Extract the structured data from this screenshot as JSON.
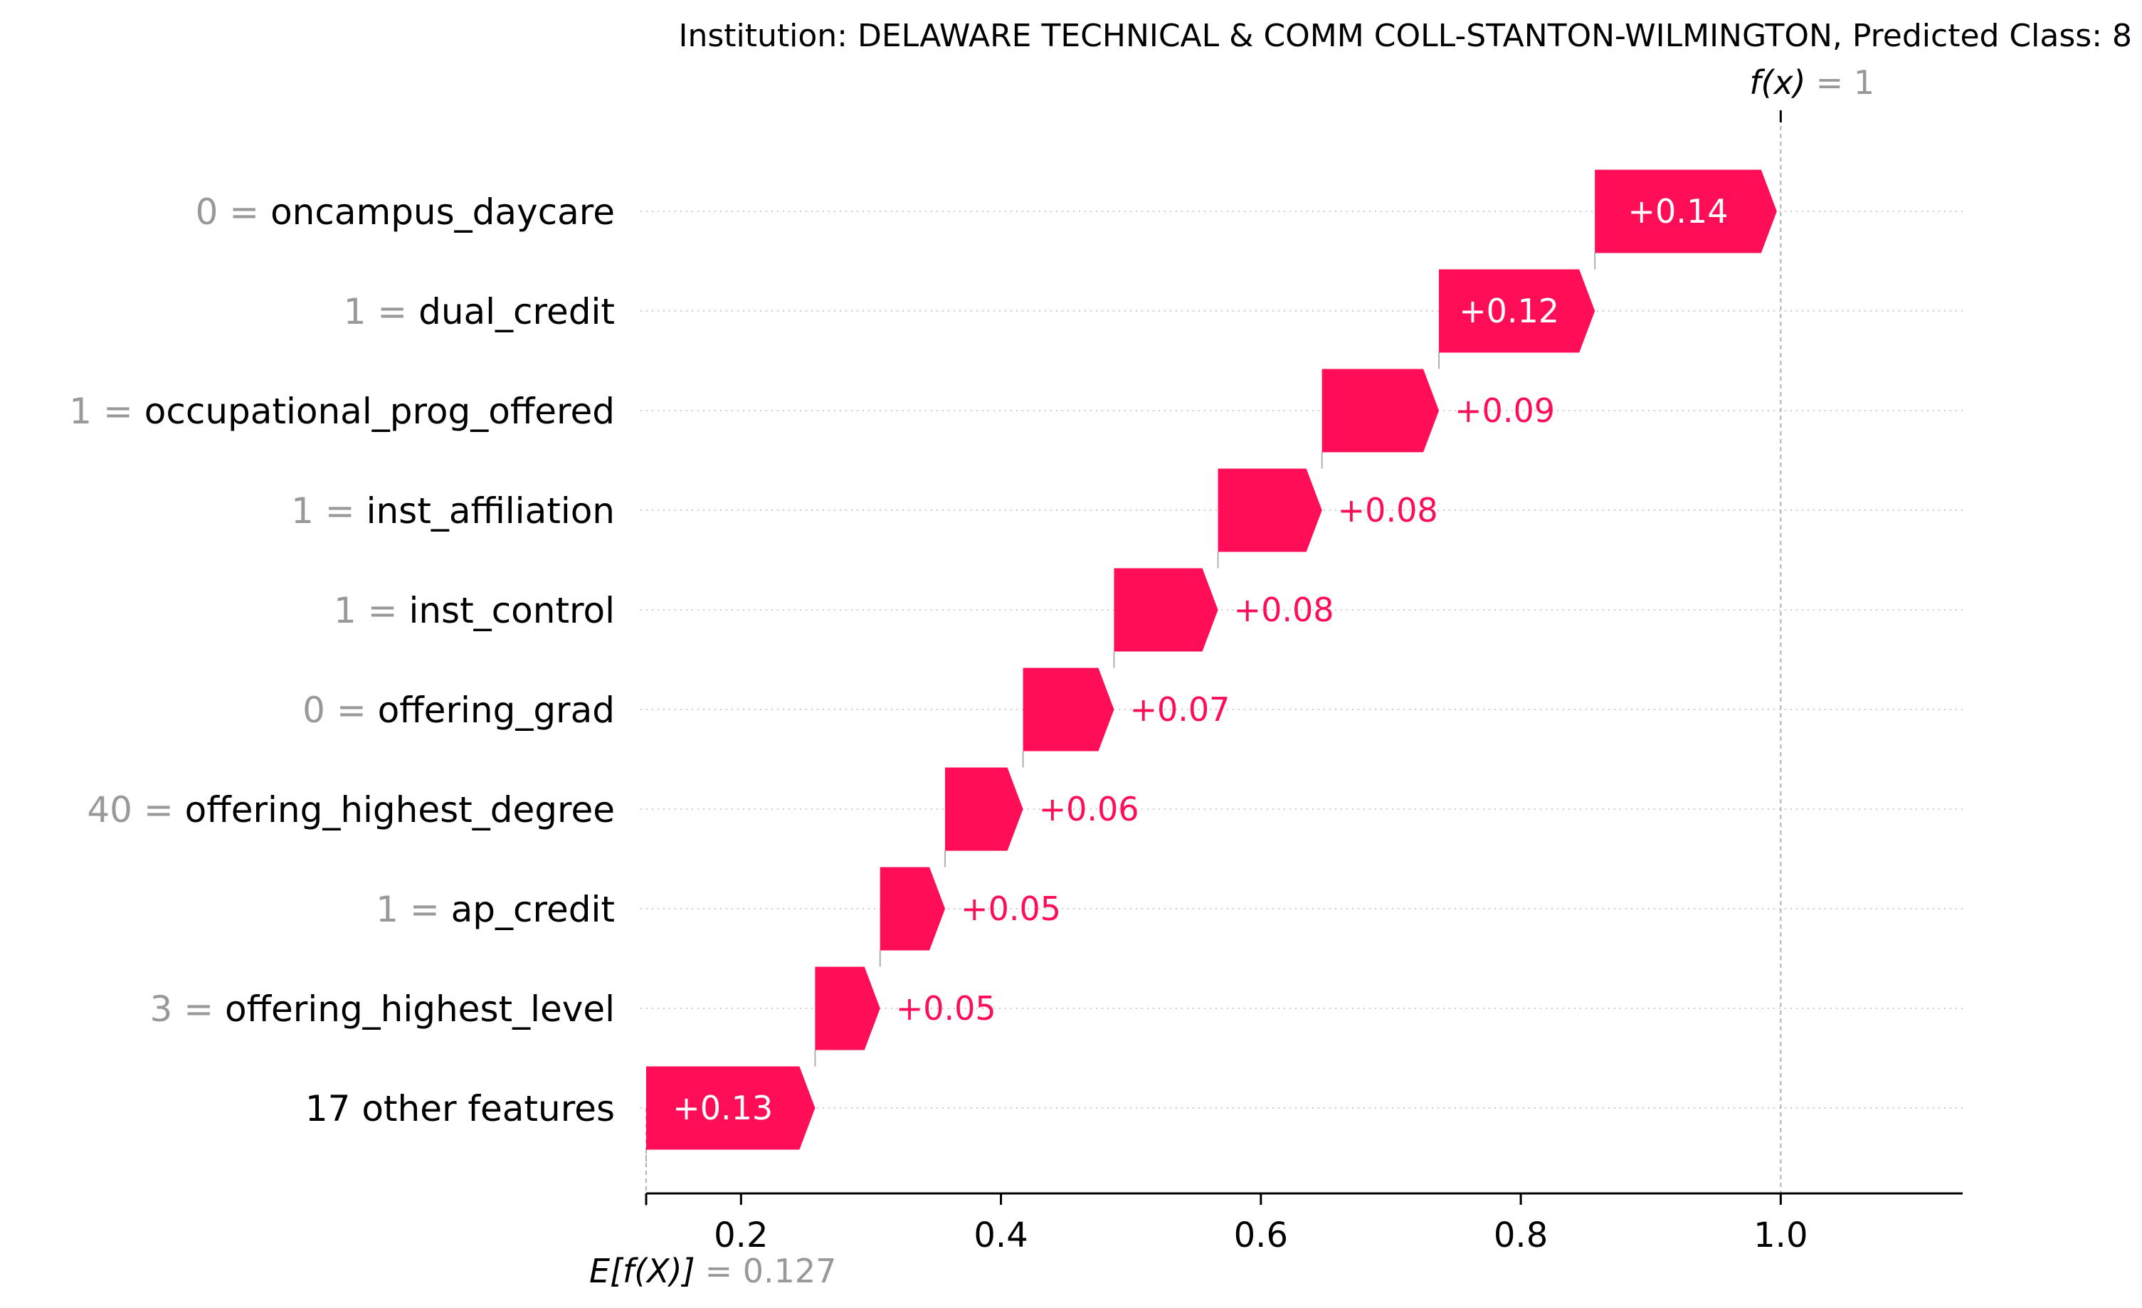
{
  "chart_data": {
    "type": "waterfall",
    "title": "Institution: DELAWARE TECHNICAL & COMM COLL-STANTON-WILMINGTON, Predicted Class: 8",
    "base_value": 0.127,
    "base_label": "E[f(X)]",
    "base_value_text": "= 0.127",
    "output_value": 1,
    "output_label": "f(x)",
    "output_value_text": "= 1",
    "xlim": [
      0.127,
      1.14
    ],
    "xticks": [
      0.2,
      0.4,
      0.6,
      0.8,
      1.0
    ],
    "xtick_labels": [
      "0.2",
      "0.4",
      "0.6",
      "0.8",
      "1.0"
    ],
    "positive_color": "#ff0d57",
    "features": [
      {
        "value": "0",
        "name": "oncampus_daycare",
        "contribution": 0.14,
        "label": "+0.14"
      },
      {
        "value": "1",
        "name": "dual_credit",
        "contribution": 0.12,
        "label": "+0.12"
      },
      {
        "value": "1",
        "name": "occupational_prog_offered",
        "contribution": 0.09,
        "label": "+0.09"
      },
      {
        "value": "1",
        "name": "inst_affiliation",
        "contribution": 0.08,
        "label": "+0.08"
      },
      {
        "value": "1",
        "name": "inst_control",
        "contribution": 0.08,
        "label": "+0.08"
      },
      {
        "value": "0",
        "name": "offering_grad",
        "contribution": 0.07,
        "label": "+0.07"
      },
      {
        "value": "40",
        "name": "offering_highest_degree",
        "contribution": 0.06,
        "label": "+0.06"
      },
      {
        "value": "1",
        "name": "ap_credit",
        "contribution": 0.05,
        "label": "+0.05"
      },
      {
        "value": "3",
        "name": "offering_highest_level",
        "contribution": 0.05,
        "label": "+0.05"
      },
      {
        "value": "",
        "name": "17 other features",
        "contribution": 0.13,
        "label": "+0.13"
      }
    ]
  }
}
